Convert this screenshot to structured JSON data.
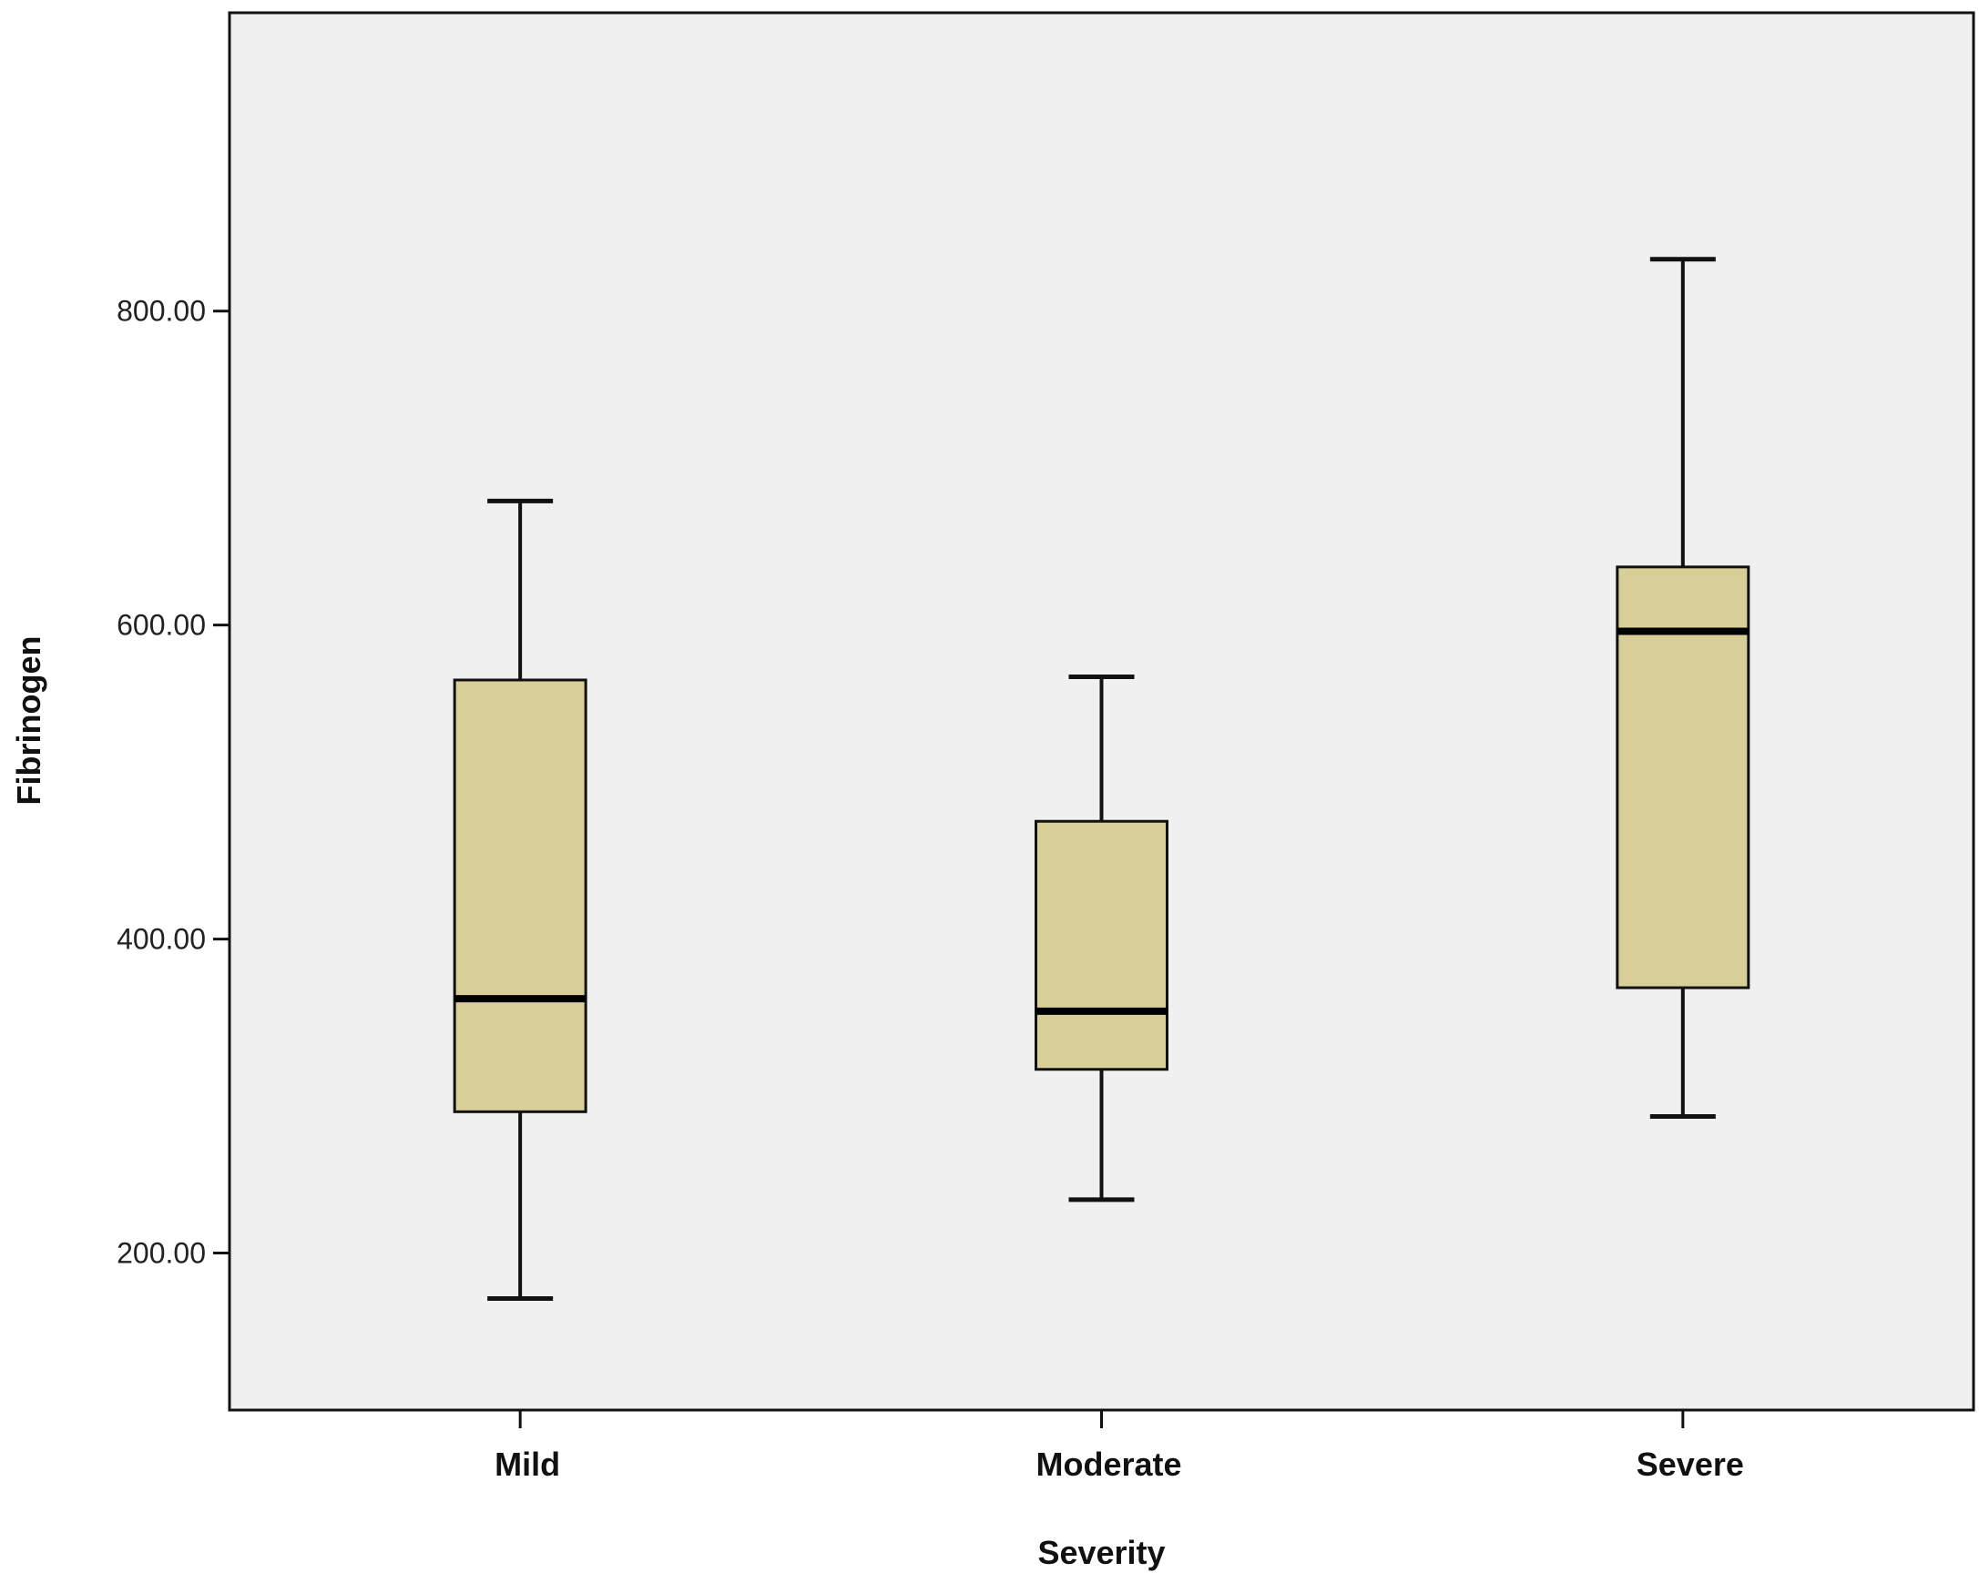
{
  "chart_data": {
    "type": "box",
    "xlabel": "Severity",
    "ylabel": "Fibrinogen",
    "categories": [
      "Mild",
      "Moderate",
      "Severe"
    ],
    "ylim": [
      100,
      990
    ],
    "yticks": [
      200,
      400,
      600,
      800
    ],
    "ytick_labels": [
      "200.00",
      "400.00",
      "600.00",
      "800.00"
    ],
    "boxes": [
      {
        "category": "Mild",
        "min": 171,
        "q1": 290,
        "median": 362,
        "q3": 565,
        "max": 679
      },
      {
        "category": "Moderate",
        "min": 234,
        "q1": 317,
        "median": 354,
        "q3": 475,
        "max": 567
      },
      {
        "category": "Severe",
        "min": 287,
        "q1": 369,
        "median": 596,
        "q3": 637,
        "max": 833
      }
    ],
    "grid": false,
    "legend": "none",
    "colors": {
      "plot_background": "#f0f0f0",
      "box_fill": "#d8cf98",
      "stroke": "#111111"
    }
  }
}
